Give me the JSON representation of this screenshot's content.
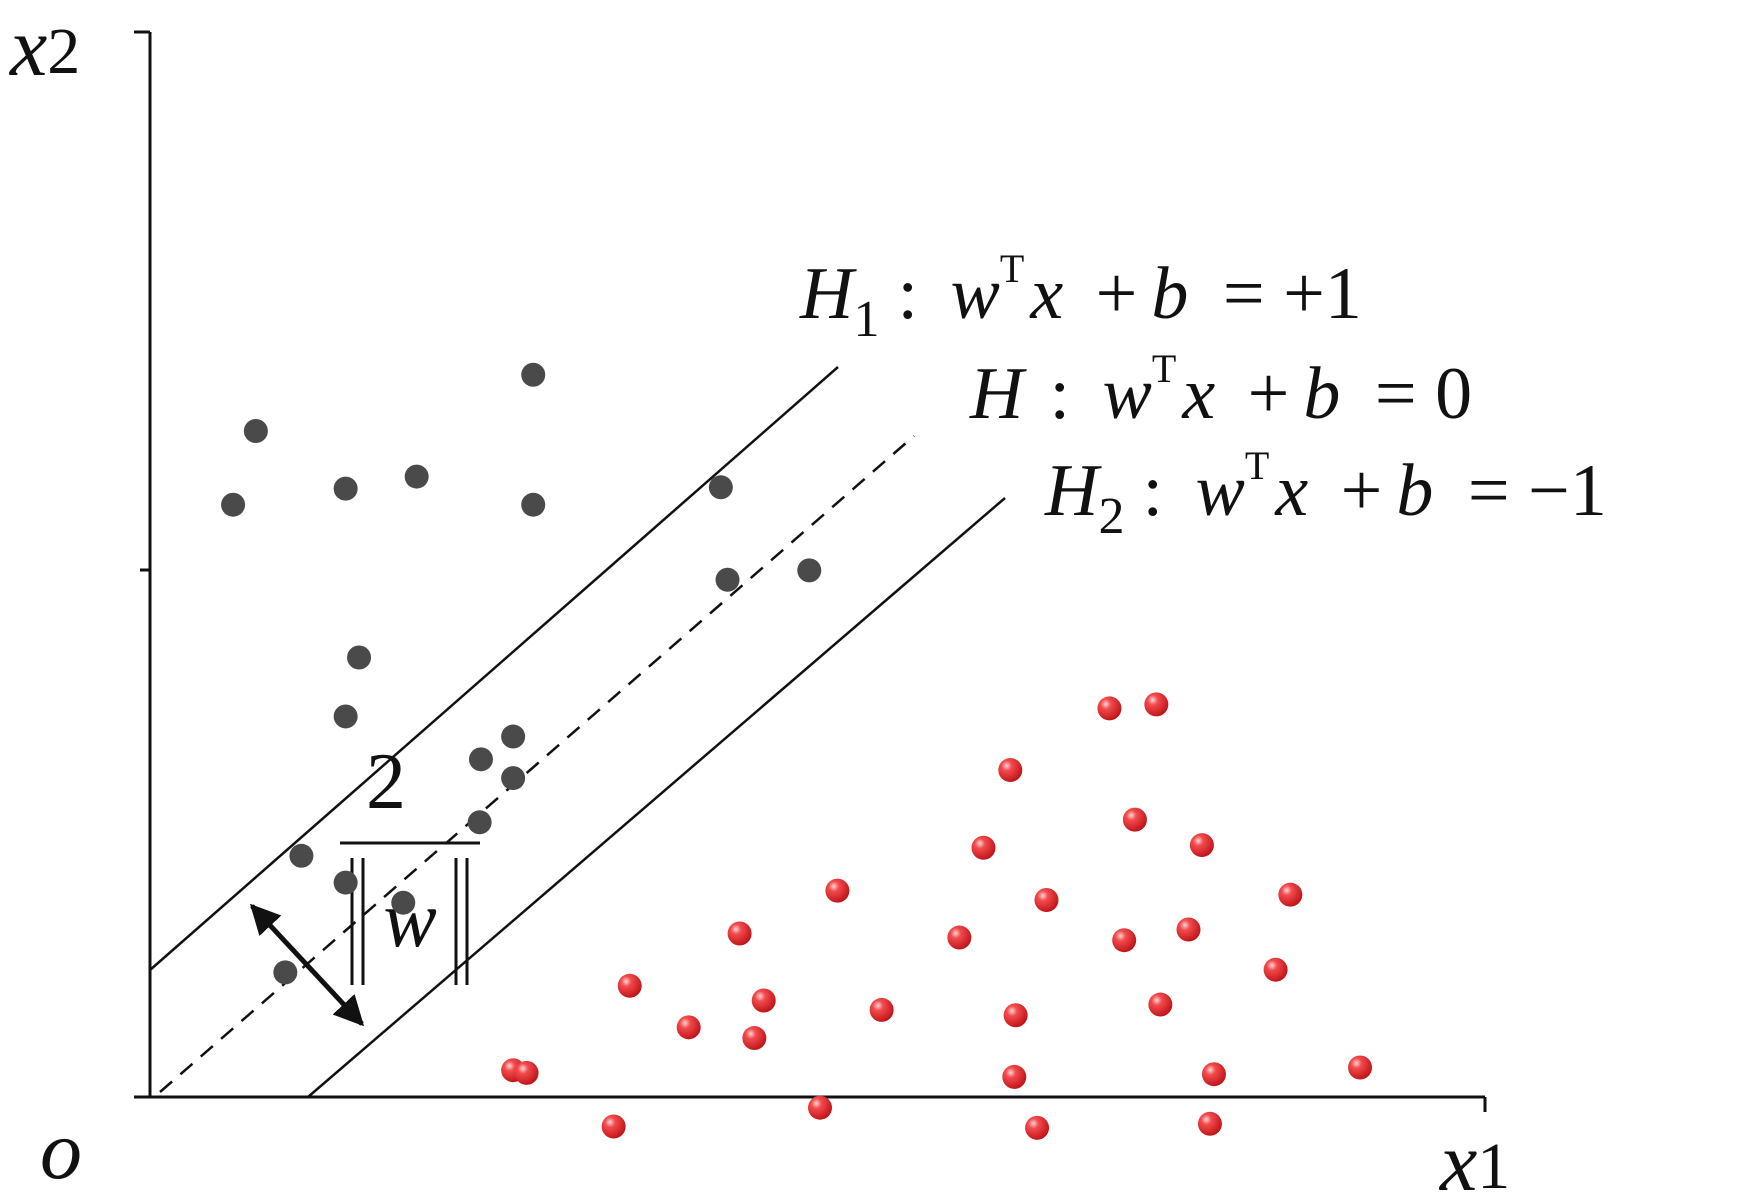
{
  "axes": {
    "x_label": "x",
    "x_label_sub": "1",
    "y_label": "x",
    "y_label_sub": "2",
    "origin_label": "o"
  },
  "hyperplanes": [
    {
      "id": "h1",
      "name": "H",
      "sub": "1",
      "w": "w",
      "sup": "T",
      "x": "x",
      "plus": "+",
      "b": "b",
      "rhs": "= +1",
      "style": "solid"
    },
    {
      "id": "h",
      "name": "H",
      "sub": "",
      "w": "w",
      "sup": "T",
      "x": "x",
      "plus": "+",
      "b": "b",
      "rhs": "= 0",
      "style": "dashed"
    },
    {
      "id": "h2",
      "name": "H",
      "sub": "2",
      "w": "w",
      "sup": "T",
      "x": "x",
      "plus": "+",
      "b": "b",
      "rhs": "= −1",
      "style": "solid"
    }
  ],
  "margin": {
    "numerator": "2",
    "denominator": "w"
  },
  "colors": {
    "class_a": "#4a4a4a",
    "class_b": "#e5262a",
    "line": "#111111"
  },
  "points": {
    "class_a": [
      [
        0.79,
        4.97
      ],
      [
        0.62,
        4.42
      ],
      [
        1.46,
        4.54
      ],
      [
        2.86,
        5.39
      ],
      [
        1.99,
        4.63
      ],
      [
        4.26,
        4.55
      ],
      [
        2.86,
        4.42
      ],
      [
        4.31,
        3.86
      ],
      [
        4.92,
        3.93
      ],
      [
        1.56,
        3.28
      ],
      [
        1.46,
        2.84
      ],
      [
        2.47,
        2.52
      ],
      [
        2.71,
        2.69
      ],
      [
        2.71,
        2.38
      ],
      [
        2.46,
        2.05
      ],
      [
        1.13,
        1.8
      ],
      [
        1.46,
        1.6
      ],
      [
        1.89,
        1.45
      ],
      [
        1.01,
        0.93
      ]
    ],
    "class_b": [
      [
        7.16,
        2.9
      ],
      [
        7.51,
        2.93
      ],
      [
        6.42,
        2.44
      ],
      [
        7.35,
        2.07
      ],
      [
        7.85,
        1.88
      ],
      [
        6.22,
        1.86
      ],
      [
        5.13,
        1.54
      ],
      [
        6.69,
        1.47
      ],
      [
        8.51,
        1.51
      ],
      [
        4.4,
        1.22
      ],
      [
        6.04,
        1.19
      ],
      [
        7.27,
        1.17
      ],
      [
        7.75,
        1.25
      ],
      [
        3.58,
        0.83
      ],
      [
        8.4,
        0.95
      ],
      [
        4.58,
        0.72
      ],
      [
        5.46,
        0.65
      ],
      [
        6.46,
        0.61
      ],
      [
        7.54,
        0.69
      ],
      [
        4.02,
        0.52
      ],
      [
        4.51,
        0.44
      ],
      [
        2.71,
        0.2
      ],
      [
        2.81,
        0.18
      ],
      [
        9.03,
        0.22
      ],
      [
        6.45,
        0.15
      ],
      [
        7.94,
        0.17
      ],
      [
        5.0,
        -0.08
      ],
      [
        3.46,
        -0.22
      ],
      [
        6.62,
        -0.23
      ],
      [
        7.91,
        -0.2
      ]
    ]
  }
}
